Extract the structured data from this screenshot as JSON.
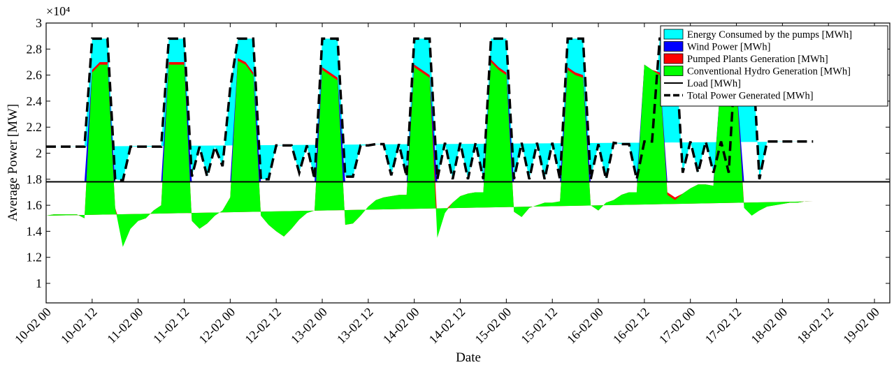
{
  "chart_data": {
    "type": "area",
    "xlabel": "Date",
    "ylabel": "Average Power [MW]",
    "y_exponent_label": "×10⁴",
    "ylim": [
      8500,
      30000
    ],
    "yticks": [
      10000,
      12000,
      14000,
      16000,
      18000,
      20000,
      22000,
      24000,
      26000,
      28000,
      30000
    ],
    "ytick_labels": [
      "1",
      "1.2",
      "1.4",
      "1.6",
      "1.8",
      "2",
      "2.2",
      "2.4",
      "2.6",
      "2.8",
      "3"
    ],
    "xlim": [
      0,
      220
    ],
    "xticks": [
      0,
      12,
      24,
      36,
      48,
      60,
      72,
      84,
      96,
      108,
      120,
      132,
      144,
      156,
      168,
      180,
      192,
      204,
      216
    ],
    "xtick_labels": [
      "10-02 00",
      "10-02 12",
      "11-02 00",
      "11-02 12",
      "12-02 00",
      "12-02 12",
      "13-02 00",
      "13-02 12",
      "14-02 00",
      "14-02 12",
      "15-02 00",
      "15-02 12",
      "16-02 00",
      "16-02 12",
      "17-02 00",
      "17-02 12",
      "18-02 00",
      "18-02 12",
      "19-02 00"
    ],
    "grid": false,
    "legend_position": "top-right",
    "load_mw": 17800,
    "colors": {
      "pumps": "#00ffff",
      "wind": "#0000ff",
      "pumped_gen": "#ff0000",
      "hydro": "#00ff00",
      "load": "#000000",
      "total": "#000000"
    },
    "series": [
      {
        "name": "Energy Consumed by the pumps [MWh]",
        "key": "pumps"
      },
      {
        "name": "Wind Power [MWh]",
        "key": "wind"
      },
      {
        "name": "Pumped Plants Generation [MWh]",
        "key": "pumped_gen"
      },
      {
        "name": "Conventional Hydro Generation [MWh]",
        "key": "hydro"
      },
      {
        "name": "Load [MWh]",
        "key": "load"
      },
      {
        "name": "Total Power Generated [MWh]",
        "key": "total"
      }
    ],
    "x": [
      0,
      2,
      4,
      6,
      8,
      10,
      12,
      14,
      16,
      18,
      20,
      22,
      24,
      26,
      28,
      30,
      32,
      34,
      36,
      38,
      40,
      42,
      44,
      46,
      48,
      50,
      52,
      54,
      56,
      58,
      60,
      62,
      64,
      66,
      68,
      70,
      72,
      74,
      76,
      78,
      80,
      82,
      84,
      86,
      88,
      90,
      92,
      94,
      96,
      98,
      100,
      102,
      104,
      106,
      108,
      110,
      112,
      114,
      116,
      118,
      120,
      122,
      124,
      126,
      128,
      130,
      132,
      134,
      136,
      138,
      140,
      142,
      144,
      146,
      148,
      150,
      152,
      154,
      156,
      158,
      160,
      162,
      164,
      166,
      168,
      170,
      172,
      174,
      176,
      178,
      180,
      182,
      184,
      186,
      188,
      190,
      192,
      194,
      196,
      198,
      200,
      202,
      204,
      206,
      208,
      210,
      212,
      214,
      216,
      218,
      220
    ],
    "total": [
      20500,
      20500,
      20500,
      20500,
      20500,
      20500,
      28800,
      28800,
      28800,
      18000,
      17900,
      20500,
      20500,
      20500,
      20500,
      20500,
      28800,
      28800,
      28800,
      18200,
      20500,
      18200,
      20500,
      19000,
      25000,
      28800,
      28800,
      28800,
      18000,
      18000,
      20600,
      20600,
      20600,
      18500,
      20600,
      18000,
      28800,
      28800,
      28800,
      18200,
      18200,
      20600,
      20600,
      20700,
      20700,
      18300,
      20700,
      18200,
      28800,
      28800,
      28800,
      18000,
      20800,
      18000,
      20800,
      18000,
      20800,
      18000,
      28800,
      28800,
      28800,
      18000,
      20800,
      18000,
      20800,
      18000,
      20800,
      18000,
      28800,
      28800,
      28800,
      18000,
      20700,
      18000,
      20800,
      20700,
      20700,
      18000,
      20900,
      20900,
      28800,
      28800,
      28800,
      18500,
      20900,
      18500,
      20900,
      18500,
      20900,
      18500,
      28800,
      28800,
      28800,
      18000,
      20900,
      20900,
      20900,
      20900,
      20900,
      20900,
      20900
    ],
    "hydro": [
      15200,
      15300,
      15300,
      15300,
      15300,
      15000,
      26200,
      26800,
      26800,
      15800,
      12800,
      14200,
      14800,
      15000,
      15600,
      16000,
      26800,
      26800,
      26800,
      14800,
      14200,
      14600,
      15200,
      15600,
      16600,
      27100,
      26800,
      26000,
      15200,
      14500,
      14000,
      13600,
      14200,
      14900,
      15400,
      15600,
      26400,
      26000,
      25600,
      14500,
      14600,
      15200,
      15900,
      16400,
      16600,
      16700,
      16800,
      16800,
      26600,
      26200,
      25800,
      13500,
      15400,
      16200,
      16700,
      16900,
      17000,
      17000,
      27000,
      26400,
      26000,
      15500,
      15100,
      15800,
      16000,
      16200,
      16200,
      16300,
      26400,
      26000,
      25800,
      16000,
      15600,
      16200,
      16400,
      16800,
      17000,
      17000,
      26800,
      26400,
      26000,
      16800,
      16400,
      16900,
      17300,
      17600,
      17600,
      17500,
      26000,
      25600,
      25200,
      15800,
      15200,
      15600,
      15900,
      16000,
      16100,
      16200,
      16200,
      16300,
      16300
    ],
    "pumped": [
      0,
      0,
      0,
      0,
      0,
      0,
      200,
      200,
      200,
      0,
      1100,
      0,
      0,
      0,
      0,
      0,
      200,
      200,
      200,
      0,
      0,
      0,
      0,
      0,
      0,
      200,
      200,
      200,
      0,
      0,
      0,
      0,
      0,
      0,
      0,
      0,
      200,
      200,
      200,
      0,
      0,
      0,
      0,
      0,
      0,
      0,
      0,
      0,
      200,
      200,
      200,
      1400,
      200,
      0,
      0,
      0,
      0,
      0,
      200,
      200,
      200,
      0,
      0,
      0,
      0,
      0,
      0,
      0,
      200,
      200,
      200,
      0,
      0,
      0,
      0,
      0,
      0,
      0,
      0,
      0,
      200,
      200,
      200,
      0,
      0,
      0,
      0,
      0,
      0,
      0,
      200,
      200,
      200,
      0,
      0,
      0,
      0,
      0,
      0,
      0,
      0
    ]
  },
  "legend_title": ""
}
